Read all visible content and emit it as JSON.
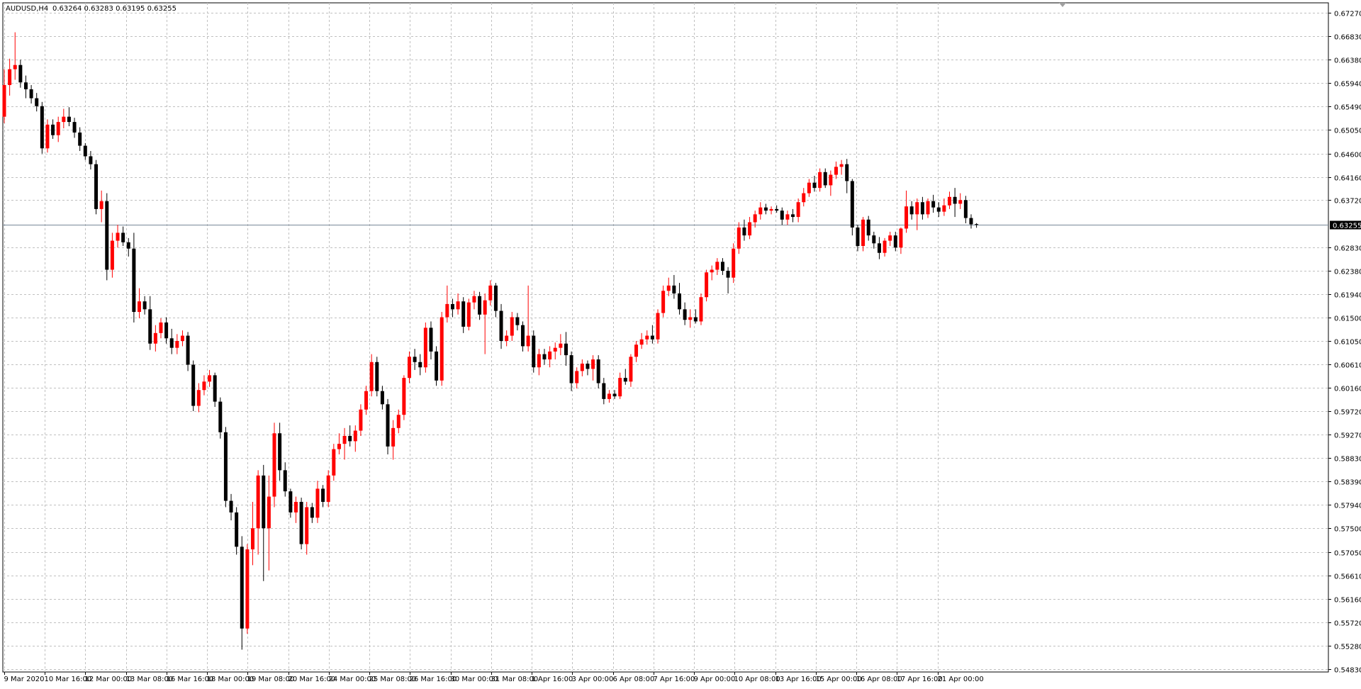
{
  "chart_header": {
    "symbol_label": "AUDUSD,H4",
    "ohlc_text": "0.63264 0.63283 0.63195 0.63255"
  },
  "chart_data": {
    "type": "candlestick",
    "symbol": "AUDUSD",
    "timeframe": "H4",
    "ylim": [
      0.5483,
      0.6727
    ],
    "grid": true,
    "current_price": 0.63255,
    "y_ticks": [
      "0.67270",
      "0.66830",
      "0.66380",
      "0.65940",
      "0.65490",
      "0.65050",
      "0.64600",
      "0.64160",
      "0.63720",
      "0.63255",
      "0.62830",
      "0.62380",
      "0.61940",
      "0.61500",
      "0.61050",
      "0.60610",
      "0.60160",
      "0.59720",
      "0.59270",
      "0.58830",
      "0.58390",
      "0.57940",
      "0.57500",
      "0.57050",
      "0.56610",
      "0.56160",
      "0.55720",
      "0.55280",
      "0.54830"
    ],
    "x_ticks": [
      "9 Mar 2020",
      "10 Mar 16:00",
      "12 Mar 00:00",
      "13 Mar 08:00",
      "16 Mar 16:00",
      "18 Mar 00:00",
      "19 Mar 08:00",
      "20 Mar 16:00",
      "24 Mar 00:00",
      "25 Mar 08:00",
      "26 Mar 16:00",
      "30 Mar 00:00",
      "31 Mar 08:00",
      "1 Apr 16:00",
      "3 Apr 00:00",
      "6 Apr 08:00",
      "7 Apr 16:00",
      "9 Apr 00:00",
      "10 Apr 08:00",
      "13 Apr 16:00",
      "15 Apr 00:00",
      "16 Apr 08:00",
      "17 Apr 16:00",
      "21 Apr 00:00"
    ],
    "colors": {
      "bull": "#ff0000",
      "bear": "#000000",
      "grid": "#c0c0c0",
      "price_line": "#778899",
      "price_label_bg": "#000000",
      "price_label_fg": "#ffffff"
    },
    "candles": [
      [
        0.653,
        0.662,
        0.6518,
        0.659
      ],
      [
        0.659,
        0.664,
        0.657,
        0.662
      ],
      [
        0.662,
        0.669,
        0.66,
        0.6628
      ],
      [
        0.6628,
        0.6638,
        0.6585,
        0.6595
      ],
      [
        0.6595,
        0.6608,
        0.6565,
        0.6582
      ],
      [
        0.6582,
        0.659,
        0.6555,
        0.6565
      ],
      [
        0.6565,
        0.6575,
        0.654,
        0.655
      ],
      [
        0.655,
        0.6558,
        0.646,
        0.647
      ],
      [
        0.647,
        0.6525,
        0.6462,
        0.6515
      ],
      [
        0.6515,
        0.6525,
        0.6488,
        0.6495
      ],
      [
        0.6495,
        0.653,
        0.6482,
        0.652
      ],
      [
        0.652,
        0.6545,
        0.6508,
        0.653
      ],
      [
        0.653,
        0.6548,
        0.6512,
        0.652
      ],
      [
        0.652,
        0.6528,
        0.649,
        0.65
      ],
      [
        0.65,
        0.651,
        0.6465,
        0.6475
      ],
      [
        0.6475,
        0.648,
        0.6448,
        0.6455
      ],
      [
        0.6455,
        0.6465,
        0.643,
        0.644
      ],
      [
        0.644,
        0.6448,
        0.6345,
        0.6355
      ],
      [
        0.6355,
        0.639,
        0.633,
        0.637
      ],
      [
        0.637,
        0.6385,
        0.622,
        0.624
      ],
      [
        0.624,
        0.631,
        0.6225,
        0.6295
      ],
      [
        0.6295,
        0.6325,
        0.6282,
        0.631
      ],
      [
        0.631,
        0.6322,
        0.6285,
        0.6292
      ],
      [
        0.6292,
        0.63,
        0.6265,
        0.628
      ],
      [
        0.628,
        0.631,
        0.614,
        0.616
      ],
      [
        0.616,
        0.6205,
        0.6148,
        0.618
      ],
      [
        0.618,
        0.619,
        0.6155,
        0.6165
      ],
      [
        0.6165,
        0.619,
        0.6088,
        0.61
      ],
      [
        0.61,
        0.6135,
        0.6085,
        0.612
      ],
      [
        0.612,
        0.6148,
        0.611,
        0.614
      ],
      [
        0.614,
        0.615,
        0.61,
        0.611
      ],
      [
        0.611,
        0.6128,
        0.608,
        0.6092
      ],
      [
        0.6092,
        0.6118,
        0.608,
        0.6105
      ],
      [
        0.6105,
        0.6125,
        0.6095,
        0.6115
      ],
      [
        0.6115,
        0.6122,
        0.6048,
        0.606
      ],
      [
        0.606,
        0.6068,
        0.5972,
        0.5982
      ],
      [
        0.5982,
        0.6025,
        0.597,
        0.6012
      ],
      [
        0.6012,
        0.604,
        0.6002,
        0.6028
      ],
      [
        0.6028,
        0.605,
        0.6018,
        0.604
      ],
      [
        0.604,
        0.6045,
        0.598,
        0.599
      ],
      [
        0.599,
        0.5998,
        0.592,
        0.5932
      ],
      [
        0.5932,
        0.5942,
        0.579,
        0.5802
      ],
      [
        0.5802,
        0.5815,
        0.5765,
        0.578
      ],
      [
        0.578,
        0.579,
        0.57,
        0.5715
      ],
      [
        0.5715,
        0.5735,
        0.552,
        0.556
      ],
      [
        0.556,
        0.572,
        0.555,
        0.571
      ],
      [
        0.571,
        0.58,
        0.568,
        0.575
      ],
      [
        0.575,
        0.586,
        0.57,
        0.585
      ],
      [
        0.585,
        0.587,
        0.565,
        0.575
      ],
      [
        0.575,
        0.585,
        0.567,
        0.581
      ],
      [
        0.581,
        0.595,
        0.579,
        0.593
      ],
      [
        0.593,
        0.595,
        0.584,
        0.586
      ],
      [
        0.586,
        0.5875,
        0.581,
        0.582
      ],
      [
        0.582,
        0.5825,
        0.577,
        0.578
      ],
      [
        0.578,
        0.581,
        0.576,
        0.58
      ],
      [
        0.58,
        0.5808,
        0.571,
        0.572
      ],
      [
        0.572,
        0.58,
        0.57,
        0.579
      ],
      [
        0.579,
        0.5798,
        0.576,
        0.577
      ],
      [
        0.577,
        0.584,
        0.576,
        0.5825
      ],
      [
        0.5825,
        0.5832,
        0.579,
        0.58
      ],
      [
        0.58,
        0.586,
        0.579,
        0.585
      ],
      [
        0.585,
        0.591,
        0.584,
        0.59
      ],
      [
        0.59,
        0.593,
        0.589,
        0.591
      ],
      [
        0.591,
        0.594,
        0.588,
        0.5925
      ],
      [
        0.5925,
        0.5945,
        0.5905,
        0.5915
      ],
      [
        0.5915,
        0.5945,
        0.5895,
        0.5935
      ],
      [
        0.5935,
        0.5985,
        0.5925,
        0.5975
      ],
      [
        0.5975,
        0.602,
        0.5965,
        0.601
      ],
      [
        0.601,
        0.608,
        0.6,
        0.6065
      ],
      [
        0.6065,
        0.6075,
        0.6,
        0.601
      ],
      [
        0.601,
        0.602,
        0.5975,
        0.5985
      ],
      [
        0.5985,
        0.5995,
        0.589,
        0.5905
      ],
      [
        0.5905,
        0.5955,
        0.588,
        0.594
      ],
      [
        0.594,
        0.5975,
        0.593,
        0.5965
      ],
      [
        0.5965,
        0.604,
        0.5955,
        0.6035
      ],
      [
        0.6035,
        0.6085,
        0.6025,
        0.6075
      ],
      [
        0.6075,
        0.609,
        0.605,
        0.6065
      ],
      [
        0.6065,
        0.608,
        0.604,
        0.6055
      ],
      [
        0.6055,
        0.614,
        0.6045,
        0.613
      ],
      [
        0.613,
        0.6142,
        0.607,
        0.6085
      ],
      [
        0.6085,
        0.6095,
        0.602,
        0.603
      ],
      [
        0.603,
        0.616,
        0.602,
        0.615
      ],
      [
        0.615,
        0.621,
        0.614,
        0.6175
      ],
      [
        0.6175,
        0.6185,
        0.615,
        0.6165
      ],
      [
        0.6165,
        0.6195,
        0.6155,
        0.618
      ],
      [
        0.618,
        0.6188,
        0.612,
        0.6132
      ],
      [
        0.6132,
        0.6185,
        0.6125,
        0.6178
      ],
      [
        0.6178,
        0.62,
        0.6165,
        0.619
      ],
      [
        0.619,
        0.6198,
        0.6145,
        0.6155
      ],
      [
        0.6155,
        0.6195,
        0.608,
        0.6182
      ],
      [
        0.6182,
        0.622,
        0.6172,
        0.621
      ],
      [
        0.621,
        0.6215,
        0.615,
        0.6162
      ],
      [
        0.6162,
        0.6175,
        0.609,
        0.6105
      ],
      [
        0.6105,
        0.6125,
        0.6095,
        0.6115
      ],
      [
        0.6115,
        0.616,
        0.6105,
        0.615
      ],
      [
        0.615,
        0.6158,
        0.6125,
        0.6135
      ],
      [
        0.6135,
        0.6142,
        0.6085,
        0.6095
      ],
      [
        0.6095,
        0.621,
        0.6085,
        0.6115
      ],
      [
        0.6115,
        0.6125,
        0.6045,
        0.6055
      ],
      [
        0.6055,
        0.609,
        0.604,
        0.608
      ],
      [
        0.608,
        0.609,
        0.606,
        0.607
      ],
      [
        0.607,
        0.6095,
        0.6055,
        0.6085
      ],
      [
        0.6085,
        0.6102,
        0.607,
        0.6092
      ],
      [
        0.6092,
        0.6118,
        0.6078,
        0.61
      ],
      [
        0.61,
        0.6122,
        0.6058,
        0.6078
      ],
      [
        0.6078,
        0.6085,
        0.601,
        0.6025
      ],
      [
        0.6025,
        0.6055,
        0.6015,
        0.6048
      ],
      [
        0.6048,
        0.607,
        0.6038,
        0.6062
      ],
      [
        0.6062,
        0.6068,
        0.604,
        0.6052
      ],
      [
        0.6052,
        0.6078,
        0.603,
        0.607
      ],
      [
        0.607,
        0.6078,
        0.6015,
        0.6025
      ],
      [
        0.6025,
        0.6035,
        0.5985,
        0.5995
      ],
      [
        0.5995,
        0.6012,
        0.5988,
        0.6005
      ],
      [
        0.6005,
        0.6012,
        0.5995,
        0.6
      ],
      [
        0.6,
        0.6045,
        0.5995,
        0.6035
      ],
      [
        0.6035,
        0.6052,
        0.6022,
        0.6028
      ],
      [
        0.6028,
        0.608,
        0.6018,
        0.6075
      ],
      [
        0.6075,
        0.6105,
        0.6065,
        0.6098
      ],
      [
        0.6098,
        0.612,
        0.609,
        0.6108
      ],
      [
        0.6108,
        0.6125,
        0.6098,
        0.6115
      ],
      [
        0.6115,
        0.6135,
        0.61,
        0.6108
      ],
      [
        0.6108,
        0.6165,
        0.61,
        0.6158
      ],
      [
        0.6158,
        0.621,
        0.615,
        0.62
      ],
      [
        0.62,
        0.6225,
        0.619,
        0.621
      ],
      [
        0.621,
        0.623,
        0.6185,
        0.6195
      ],
      [
        0.6195,
        0.6215,
        0.6155,
        0.6165
      ],
      [
        0.6165,
        0.6178,
        0.6135,
        0.6145
      ],
      [
        0.6145,
        0.6165,
        0.613,
        0.615
      ],
      [
        0.615,
        0.6165,
        0.6138,
        0.6142
      ],
      [
        0.6142,
        0.6195,
        0.6135,
        0.6188
      ],
      [
        0.6188,
        0.624,
        0.618,
        0.6235
      ],
      [
        0.6235,
        0.6248,
        0.622,
        0.624
      ],
      [
        0.624,
        0.6262,
        0.623,
        0.6255
      ],
      [
        0.6255,
        0.6262,
        0.623,
        0.6238
      ],
      [
        0.6238,
        0.6245,
        0.6195,
        0.6225
      ],
      [
        0.6225,
        0.629,
        0.6215,
        0.628
      ],
      [
        0.628,
        0.633,
        0.627,
        0.632
      ],
      [
        0.632,
        0.6335,
        0.6295,
        0.6305
      ],
      [
        0.6305,
        0.634,
        0.6298,
        0.633
      ],
      [
        0.633,
        0.6352,
        0.632,
        0.6345
      ],
      [
        0.6345,
        0.6368,
        0.6335,
        0.6358
      ],
      [
        0.6358,
        0.6365,
        0.6345,
        0.6352
      ],
      [
        0.6352,
        0.636,
        0.6345,
        0.6355
      ],
      [
        0.6355,
        0.6362,
        0.6348,
        0.6352
      ],
      [
        0.6352,
        0.6358,
        0.6325,
        0.6335
      ],
      [
        0.6335,
        0.6352,
        0.6325,
        0.6345
      ],
      [
        0.6345,
        0.6355,
        0.633,
        0.634
      ],
      [
        0.634,
        0.6375,
        0.633,
        0.6368
      ],
      [
        0.6368,
        0.6395,
        0.636,
        0.6385
      ],
      [
        0.6385,
        0.6412,
        0.6378,
        0.6405
      ],
      [
        0.6405,
        0.6418,
        0.6388,
        0.6395
      ],
      [
        0.6395,
        0.6432,
        0.6388,
        0.6425
      ],
      [
        0.6425,
        0.6432,
        0.6395,
        0.64
      ],
      [
        0.64,
        0.6428,
        0.638,
        0.642
      ],
      [
        0.642,
        0.6445,
        0.6412,
        0.6435
      ],
      [
        0.6435,
        0.6448,
        0.642,
        0.644
      ],
      [
        0.644,
        0.645,
        0.6385,
        0.6408
      ],
      [
        0.6408,
        0.6412,
        0.6305,
        0.632
      ],
      [
        0.632,
        0.6325,
        0.6275,
        0.6285
      ],
      [
        0.6285,
        0.634,
        0.6275,
        0.6335
      ],
      [
        0.6335,
        0.6342,
        0.6295,
        0.6305
      ],
      [
        0.6305,
        0.6312,
        0.628,
        0.629
      ],
      [
        0.629,
        0.6302,
        0.626,
        0.6272
      ],
      [
        0.6272,
        0.63,
        0.6265,
        0.6295
      ],
      [
        0.6295,
        0.6312,
        0.6285,
        0.6305
      ],
      [
        0.6305,
        0.6312,
        0.6275,
        0.6282
      ],
      [
        0.6282,
        0.632,
        0.627,
        0.6318
      ],
      [
        0.6318,
        0.639,
        0.631,
        0.636
      ],
      [
        0.636,
        0.637,
        0.6335,
        0.6345
      ],
      [
        0.6345,
        0.6375,
        0.6315,
        0.6368
      ],
      [
        0.6368,
        0.6378,
        0.6335,
        0.6345
      ],
      [
        0.6345,
        0.6375,
        0.6338,
        0.637
      ],
      [
        0.637,
        0.6382,
        0.6348,
        0.6358
      ],
      [
        0.6358,
        0.6368,
        0.634,
        0.635
      ],
      [
        0.635,
        0.6375,
        0.6342,
        0.6362
      ],
      [
        0.6362,
        0.6388,
        0.6355,
        0.6378
      ],
      [
        0.6378,
        0.6395,
        0.634,
        0.6365
      ],
      [
        0.6365,
        0.6385,
        0.6355,
        0.6372
      ],
      [
        0.6372,
        0.638,
        0.6328,
        0.6338
      ],
      [
        0.6338,
        0.6345,
        0.6318,
        0.6326
      ],
      [
        0.63264,
        0.63283,
        0.63195,
        0.63255
      ]
    ]
  }
}
